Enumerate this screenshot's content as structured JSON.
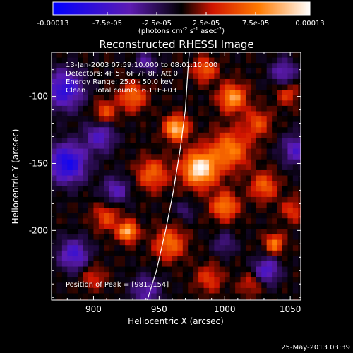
{
  "chart_data": {
    "type": "heatmap",
    "title": "Reconstructed RHESSI Image",
    "xlabel": "Heliocentric X (arcsec)",
    "ylabel": "Heliocentric Y (arcsec)",
    "x_ticks": [
      "900",
      "950",
      "1000",
      "1050"
    ],
    "x_tick_values": [
      900,
      950,
      1000,
      1050
    ],
    "y_ticks": [
      "-100",
      "-150",
      "-200"
    ],
    "y_tick_values": [
      -100,
      -150,
      -200
    ],
    "xlim": [
      868,
      1058
    ],
    "ylim": [
      -252,
      -67
    ],
    "colorbar": {
      "ticks": [
        "-0.00013",
        "-7.5e-05",
        "-2.5e-05",
        "2.5e-05",
        "7.5e-05",
        "0.00013"
      ],
      "tick_values": [
        -0.00013,
        -7.5e-05,
        -2.5e-05,
        2.5e-05,
        7.5e-05,
        0.00013
      ],
      "range": [
        -0.00013,
        0.00013
      ],
      "unit_label_parts": [
        "(photons cm",
        "-2",
        " s",
        "-1",
        " asec",
        "-2",
        ")"
      ],
      "colors": [
        "#0000ff",
        "#5d1bb2",
        "#000000",
        "#d01400",
        "#ff7a00",
        "#ffffff"
      ]
    },
    "annotations": [
      "13-Jan-2003 07:59:10.000 to 08:01:10.000",
      "Detectors: 4F 5F 6F 7F 8F, Att 0",
      "Energy Range: 25.0 - 50.0 keV",
      "Clean    Total counts: 6.11E+03"
    ],
    "peak_label": "Position of Peak = [981,-154]",
    "peak": [
      981,
      -154
    ],
    "limb": [
      [
        941,
        -252
      ],
      [
        948,
        -230
      ],
      [
        955,
        -200
      ],
      [
        961,
        -170
      ],
      [
        966,
        -140
      ],
      [
        970,
        -110
      ],
      [
        972,
        -80
      ],
      [
        973,
        -67
      ]
    ],
    "sources": [
      {
        "x": 981,
        "y": -154,
        "amp": 1.0,
        "sigma": 9
      },
      {
        "x": 963,
        "y": -124,
        "amp": 0.85,
        "sigma": 6
      },
      {
        "x": 1006,
        "y": -101,
        "amp": 0.72,
        "sigma": 7
      },
      {
        "x": 1004,
        "y": -140,
        "amp": 0.6,
        "sigma": 10
      },
      {
        "x": 1000,
        "y": -182,
        "amp": 0.62,
        "sigma": 7
      },
      {
        "x": 926,
        "y": -201,
        "amp": 0.82,
        "sigma": 5
      },
      {
        "x": 958,
        "y": -210,
        "amp": 0.55,
        "sigma": 8
      },
      {
        "x": 1038,
        "y": -210,
        "amp": 0.6,
        "sigma": 5
      },
      {
        "x": 1030,
        "y": -167,
        "amp": 0.5,
        "sigma": 7
      },
      {
        "x": 945,
        "y": -158,
        "amp": 0.5,
        "sigma": 8
      },
      {
        "x": 930,
        "y": -100,
        "amp": 0.55,
        "sigma": 7
      },
      {
        "x": 909,
        "y": -112,
        "amp": 0.45,
        "sigma": 6
      },
      {
        "x": 985,
        "y": -80,
        "amp": 0.5,
        "sigma": 6
      },
      {
        "x": 1025,
        "y": -120,
        "amp": 0.42,
        "sigma": 7
      },
      {
        "x": 1048,
        "y": -98,
        "amp": 0.35,
        "sigma": 6
      },
      {
        "x": 1052,
        "y": -185,
        "amp": 0.35,
        "sigma": 6
      },
      {
        "x": 910,
        "y": -190,
        "amp": 0.4,
        "sigma": 7
      },
      {
        "x": 988,
        "y": -236,
        "amp": 0.35,
        "sigma": 7
      },
      {
        "x": 1020,
        "y": -240,
        "amp": 0.3,
        "sigma": 6
      },
      {
        "x": 900,
        "y": -235,
        "amp": 0.3,
        "sigma": 6
      },
      {
        "x": 880,
        "y": -150,
        "amp": -0.85,
        "sigma": 10
      },
      {
        "x": 878,
        "y": -95,
        "amp": -0.7,
        "sigma": 10
      },
      {
        "x": 905,
        "y": -130,
        "amp": -0.5,
        "sigma": 8
      },
      {
        "x": 885,
        "y": -218,
        "amp": -0.6,
        "sigma": 8
      },
      {
        "x": 917,
        "y": -170,
        "amp": -0.45,
        "sigma": 7
      },
      {
        "x": 1055,
        "y": -140,
        "amp": -0.5,
        "sigma": 8
      },
      {
        "x": 1032,
        "y": -230,
        "amp": -0.55,
        "sigma": 7
      },
      {
        "x": 1045,
        "y": -82,
        "amp": -0.45,
        "sigma": 7
      },
      {
        "x": 940,
        "y": -245,
        "amp": -0.4,
        "sigma": 8
      },
      {
        "x": 1000,
        "y": -210,
        "amp": -0.3,
        "sigma": 6
      },
      {
        "x": 940,
        "y": -75,
        "amp": -0.35,
        "sigma": 6
      },
      {
        "x": 970,
        "y": -185,
        "amp": -0.25,
        "sigma": 5
      }
    ]
  },
  "footer": {
    "timestamp": "25-May-2013 03:39"
  }
}
